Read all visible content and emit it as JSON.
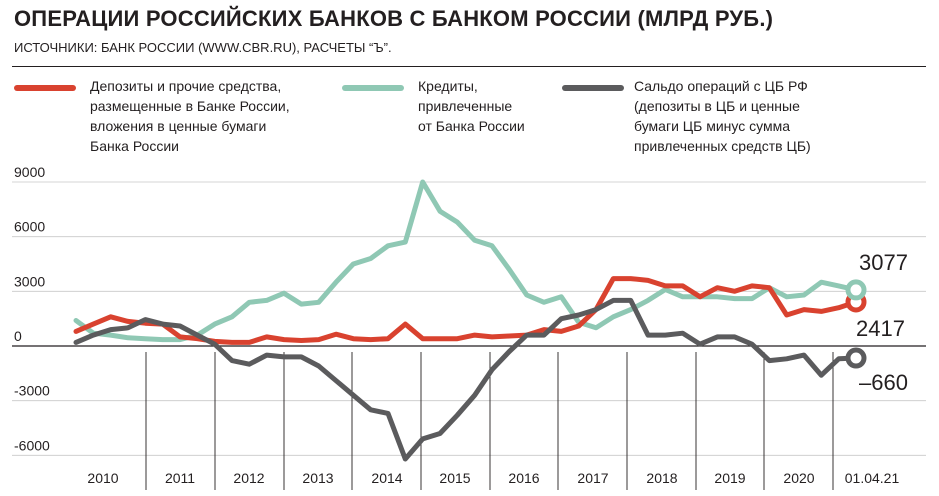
{
  "header": {
    "title": "ОПЕРАЦИИ РОССИЙСКИХ БАНКОВ С БАНКОМ РОССИИ (МЛРД РУБ.)",
    "source": "ИСТОЧНИКИ: БАНК РОССИИ (WWW.CBR.RU), РАСЧЕТЫ “Ъ”."
  },
  "legend": [
    {
      "text": "Депозиты и прочие средства,\nразмещенные в Банке России,\nвложения в ценные бумаги\nБанка России",
      "color": "#d9422f"
    },
    {
      "text": "Кредиты,\nпривлеченные\nот Банка России",
      "color": "#8fc8b4"
    },
    {
      "text": "Сальдо операций с ЦБ РФ\n(депозиты в ЦБ и ценные\nбумаги ЦБ минус сумма\nпривлеченных средств ЦБ)",
      "color": "#5b5b5d"
    }
  ],
  "chart_data": {
    "type": "line",
    "x": [
      2010.0,
      2010.25,
      2010.5,
      2010.75,
      2011.0,
      2011.25,
      2011.5,
      2011.75,
      2012.0,
      2012.25,
      2012.5,
      2012.75,
      2013.0,
      2013.25,
      2013.5,
      2013.75,
      2014.0,
      2014.25,
      2014.5,
      2014.75,
      2015.0,
      2015.25,
      2015.5,
      2015.75,
      2016.0,
      2016.25,
      2016.5,
      2016.75,
      2017.0,
      2017.25,
      2017.5,
      2017.75,
      2018.0,
      2018.25,
      2018.5,
      2018.75,
      2019.0,
      2019.25,
      2019.5,
      2019.75,
      2020.0,
      2020.25,
      2020.5,
      2020.75,
      2021.0,
      2021.25
    ],
    "series": [
      {
        "name": "Депозиты и прочие средства, размещенные в Банке России, вложения в ценные бумаги Банка России",
        "color": "#d9422f",
        "values": [
          800,
          1200,
          1600,
          1350,
          1250,
          1200,
          500,
          400,
          250,
          200,
          200,
          500,
          350,
          300,
          350,
          650,
          400,
          350,
          400,
          1200,
          400,
          400,
          400,
          600,
          500,
          550,
          600,
          900,
          800,
          1100,
          2000,
          3700,
          3700,
          3600,
          3300,
          3300,
          2700,
          3200,
          3000,
          3300,
          3200,
          1700,
          2000,
          1900,
          2100,
          2417
        ]
      },
      {
        "name": "Кредиты, привлеченные от Банка России",
        "color": "#8fc8b4",
        "values": [
          1400,
          700,
          600,
          450,
          400,
          350,
          350,
          600,
          1200,
          1600,
          2400,
          2500,
          2900,
          2300,
          2400,
          3500,
          4500,
          4800,
          5500,
          5700,
          9000,
          7400,
          6800,
          5800,
          5500,
          4200,
          2800,
          2400,
          2700,
          1300,
          1000,
          1600,
          2000,
          2500,
          3100,
          2700,
          2700,
          2700,
          2600,
          2600,
          3200,
          2700,
          2800,
          3500,
          3300,
          3077
        ]
      },
      {
        "name": "Сальдо операций с ЦБ РФ (депозиты в ЦБ и ценные бумаги ЦБ минус сумма привлеченных средств ЦБ)",
        "color": "#5b5b5d",
        "values": [
          200,
          600,
          900,
          1000,
          1450,
          1200,
          1100,
          600,
          100,
          -800,
          -1000,
          -500,
          -600,
          -600,
          -1100,
          -1900,
          -2700,
          -3500,
          -3700,
          -6200,
          -5100,
          -4800,
          -3800,
          -2700,
          -1300,
          -300,
          600,
          600,
          1500,
          1700,
          2000,
          2500,
          2500,
          600,
          600,
          700,
          100,
          500,
          500,
          100,
          -800,
          -700,
          -500,
          -1600,
          -700,
          -660
        ]
      }
    ],
    "xticks": [
      "2010",
      "2011",
      "2012",
      "2013",
      "2014",
      "2015",
      "2016",
      "2017",
      "2018",
      "2019",
      "2020",
      "01.04.21"
    ],
    "yticks": [
      "9000",
      "6000",
      "3000",
      "0",
      "-3000",
      "-6000"
    ],
    "ytick_values": [
      9000,
      6000,
      3000,
      0,
      -3000,
      -6000
    ],
    "ylim": [
      -6400,
      9500
    ],
    "xlim": [
      2009.9,
      2021.3
    ],
    "end_labels": {
      "credits": "3077",
      "deposits": "2417",
      "saldo": "–660"
    }
  }
}
